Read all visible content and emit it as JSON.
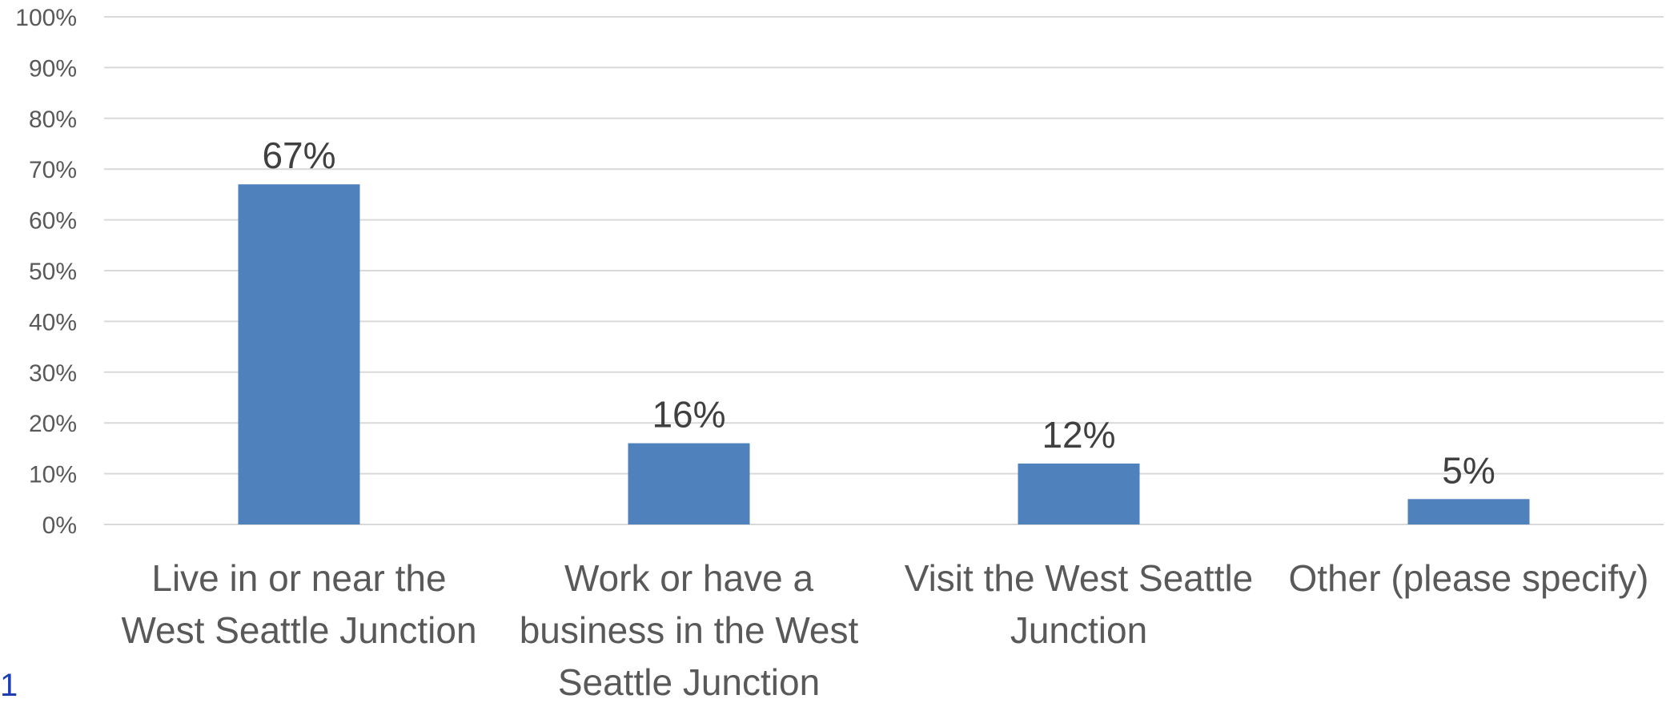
{
  "chart_data": {
    "type": "bar",
    "categories": [
      [
        "Live in or near the",
        "West Seattle Junction"
      ],
      [
        "Work or have a",
        "business in the West",
        "Seattle Junction"
      ],
      [
        "Visit the West Seattle",
        "Junction"
      ],
      [
        "Other (please specify)"
      ]
    ],
    "values": [
      67,
      16,
      12,
      5
    ],
    "data_labels": [
      "67%",
      "16%",
      "12%",
      "5%"
    ],
    "y_ticks": [
      "0%",
      "10%",
      "20%",
      "30%",
      "40%",
      "50%",
      "60%",
      "70%",
      "80%",
      "90%",
      "100%"
    ],
    "ylim": [
      0,
      100
    ],
    "grid": true,
    "legend": "none",
    "colors": {
      "bar": "#4f81bd",
      "grid": "#d9d9d9",
      "text": "#595959",
      "data_label": "#404040"
    }
  },
  "page_number": "1"
}
